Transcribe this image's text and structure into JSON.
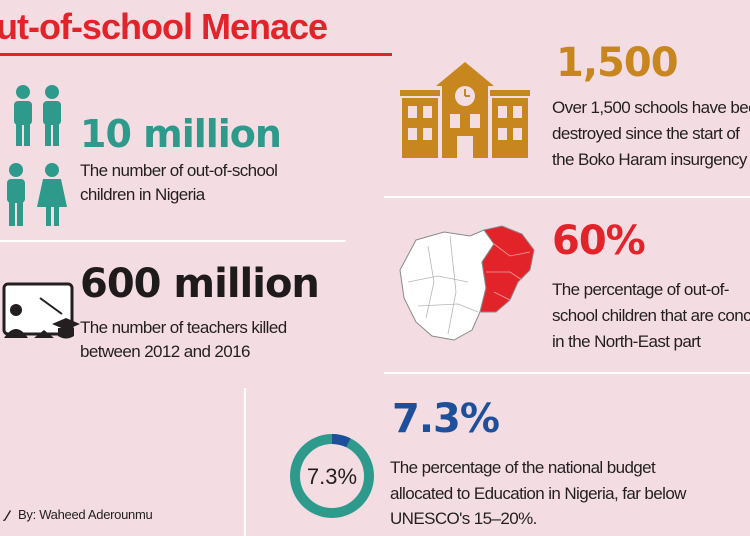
{
  "title": "ut-of-school Menace",
  "stats": {
    "out_of_school": {
      "value": "10 million",
      "desc_line1": "The number of out-of-school",
      "desc_line2": "children in Nigeria",
      "icon": "people-icon",
      "color": "#2e9a8c"
    },
    "teachers": {
      "value": "600 million",
      "desc_line1": "The number of teachers killed",
      "desc_line2": "between 2012 and 2016",
      "icon": "classroom-icon"
    },
    "schools": {
      "value": "1,500",
      "desc_line1": "Over 1,500 schools have bee",
      "desc_line2": "destroyed since the start of",
      "desc_line3": "the Boko Haram insurgency",
      "icon": "school-building-icon",
      "color": "#c8861f"
    },
    "northeast": {
      "value": "60%",
      "desc_line1": "The percentage of out-of-",
      "desc_line2": "school children that are concentr",
      "desc_line3": "in the North-East part",
      "icon": "nigeria-map-icon",
      "color": "#e2232a"
    },
    "budget": {
      "value": "7.3%",
      "donut_label": "7.3%",
      "donut_fraction": 0.073,
      "desc_line1": "The percentage of the national budget",
      "desc_line2": "allocated to Education in Nigeria, far below",
      "desc_line3": "UNESCO's 15–20%.",
      "color": "#1e4f9a",
      "ring_color": "#2e9a8c"
    }
  },
  "credit": "By: Waheed Aderounmu"
}
